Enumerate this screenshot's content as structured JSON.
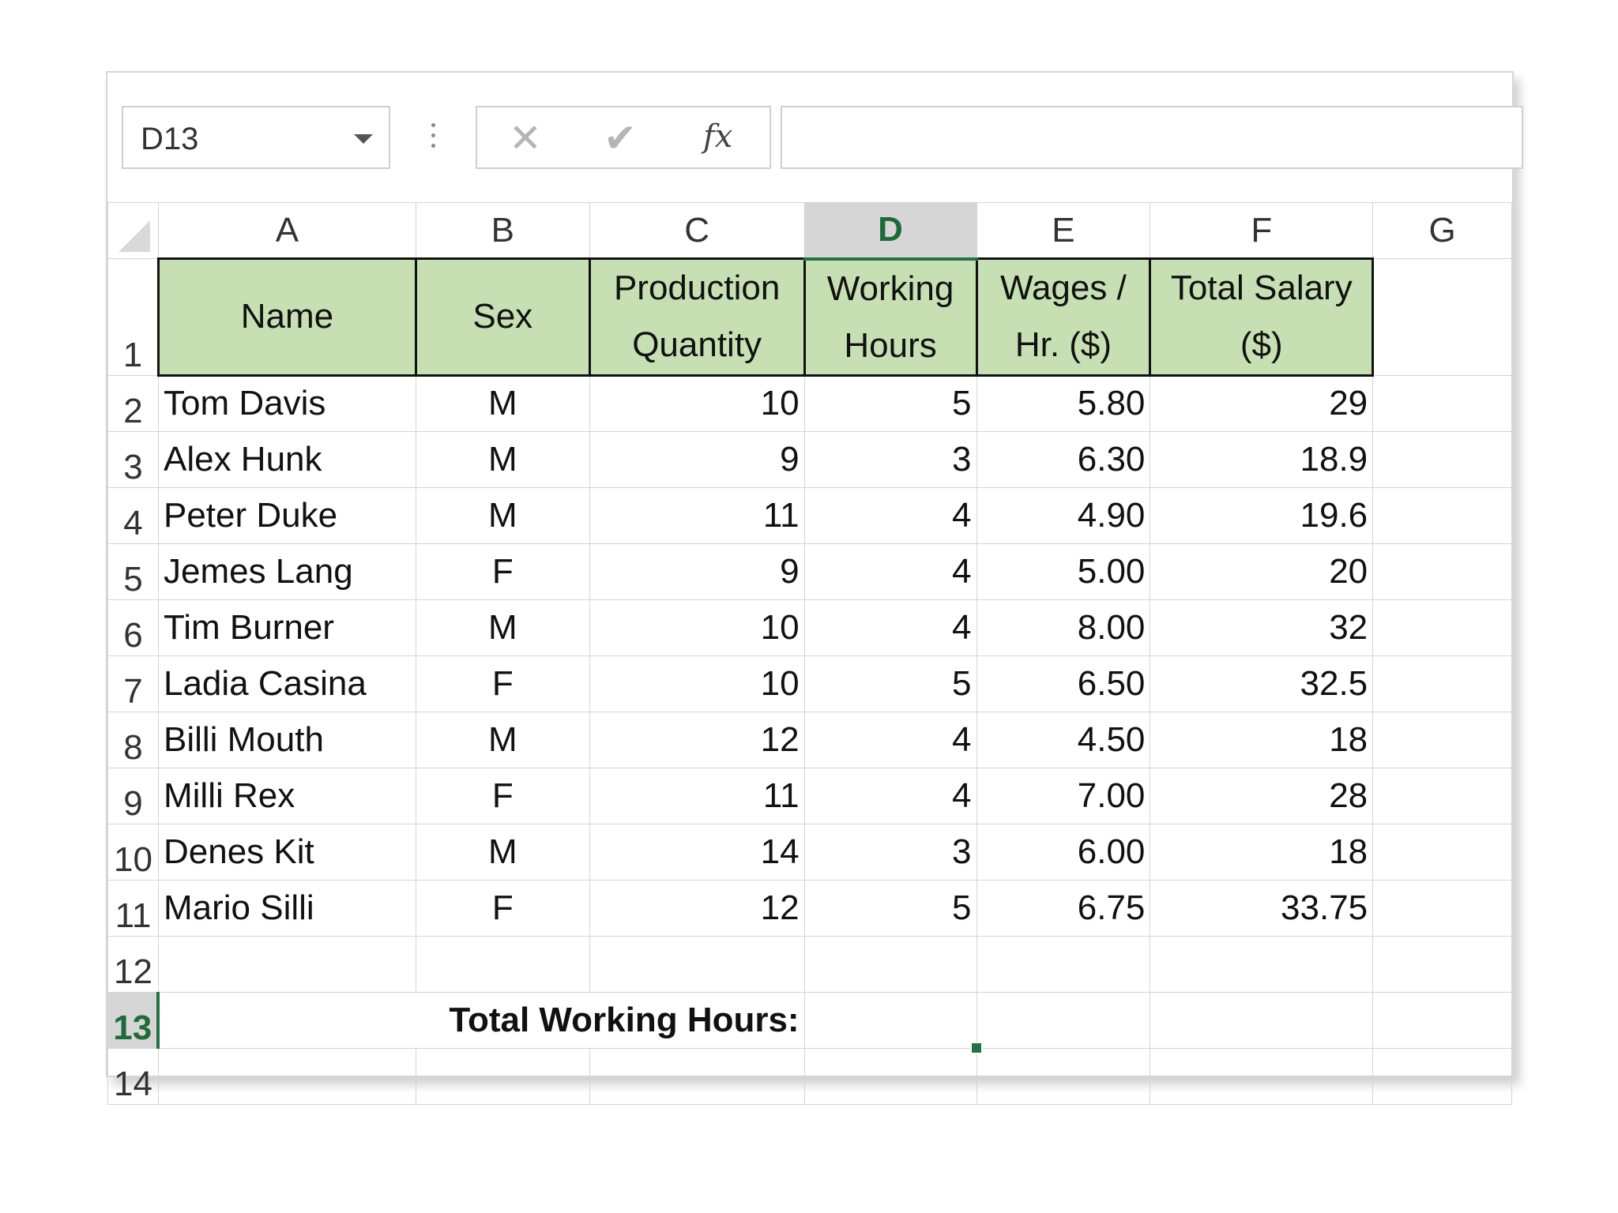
{
  "formula_bar": {
    "name_box": "D13",
    "cancel_icon": "✕",
    "enter_icon": "✔",
    "fx_label": "fx",
    "formula": ""
  },
  "columns": [
    "A",
    "B",
    "C",
    "D",
    "E",
    "F",
    "G"
  ],
  "selected_column": "D",
  "rows": [
    "1",
    "2",
    "3",
    "4",
    "5",
    "6",
    "7",
    "8",
    "9",
    "10",
    "11",
    "12",
    "13",
    "14"
  ],
  "selected_row": "13",
  "headers": {
    "a": [
      "Name"
    ],
    "b": [
      "Sex"
    ],
    "c": [
      "Production",
      "Quantity"
    ],
    "d": [
      "Working",
      "Hours"
    ],
    "e": [
      "Wages /",
      "Hr. ($)"
    ],
    "f": [
      "Total Salary",
      "($)"
    ]
  },
  "data": [
    {
      "name": "Tom Davis",
      "sex": "M",
      "qty": "10",
      "hours": "5",
      "wage": "5.80",
      "salary": "29"
    },
    {
      "name": "Alex Hunk",
      "sex": "M",
      "qty": "9",
      "hours": "3",
      "wage": "6.30",
      "salary": "18.9"
    },
    {
      "name": "Peter Duke",
      "sex": "M",
      "qty": "11",
      "hours": "4",
      "wage": "4.90",
      "salary": "19.6"
    },
    {
      "name": "Jemes Lang",
      "sex": "F",
      "qty": "9",
      "hours": "4",
      "wage": "5.00",
      "salary": "20"
    },
    {
      "name": "Tim Burner",
      "sex": "M",
      "qty": "10",
      "hours": "4",
      "wage": "8.00",
      "salary": "32"
    },
    {
      "name": "Ladia Casina",
      "sex": "F",
      "qty": "10",
      "hours": "5",
      "wage": "6.50",
      "salary": "32.5"
    },
    {
      "name": "Billi Mouth",
      "sex": "M",
      "qty": "12",
      "hours": "4",
      "wage": "4.50",
      "salary": "18"
    },
    {
      "name": "Milli Rex",
      "sex": "F",
      "qty": "11",
      "hours": "4",
      "wage": "7.00",
      "salary": "28"
    },
    {
      "name": "Denes Kit",
      "sex": "M",
      "qty": "14",
      "hours": "3",
      "wage": "6.00",
      "salary": "18"
    },
    {
      "name": "Mario Silli",
      "sex": "F",
      "qty": "12",
      "hours": "5",
      "wage": "6.75",
      "salary": "33.75"
    }
  ],
  "total_label": "Total Working Hours:",
  "total_value": "",
  "colors": {
    "header_fill": "#c6e0b4",
    "selection": "#217346"
  }
}
